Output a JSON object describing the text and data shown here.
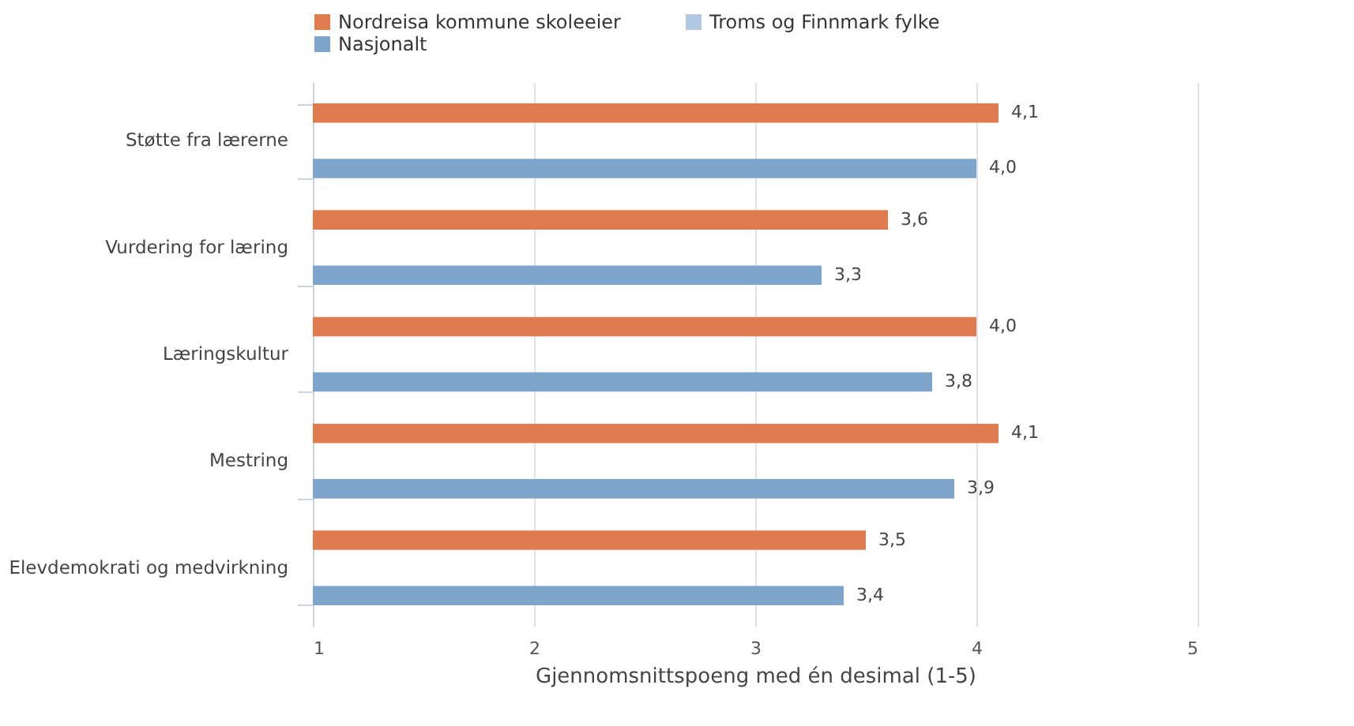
{
  "chart_data": {
    "type": "bar",
    "orientation": "horizontal",
    "xlabel": "Gjennomsnittspoeng med én desimal (1-5)",
    "categories": [
      "Støtte fra lærerne",
      "Vurdering for læring",
      "Læringskultur",
      "Mestring",
      "Elevdemokrati og medvirkning"
    ],
    "series": [
      {
        "name": "Nordreisa kommune skoleeier",
        "color": "#e07b4f",
        "values": [
          4.1,
          3.6,
          4.0,
          4.1,
          3.5
        ],
        "value_labels": [
          "4,1",
          "3,6",
          "4,0",
          "4,1",
          "3,5"
        ]
      },
      {
        "name": "Troms og Finnmark fylke",
        "color": "#b3c9e3",
        "values": [
          null,
          null,
          null,
          null,
          null
        ]
      },
      {
        "name": "Nasjonalt",
        "color": "#7fa5cc",
        "values": [
          4.0,
          3.3,
          3.8,
          3.9,
          3.4
        ],
        "value_labels": [
          "4,0",
          "3,3",
          "3,8",
          "3,9",
          "3,4"
        ]
      }
    ],
    "xlim": [
      1,
      5
    ],
    "xticks": [
      1,
      2,
      3,
      4,
      5
    ],
    "grid": "x",
    "legend": "top"
  }
}
